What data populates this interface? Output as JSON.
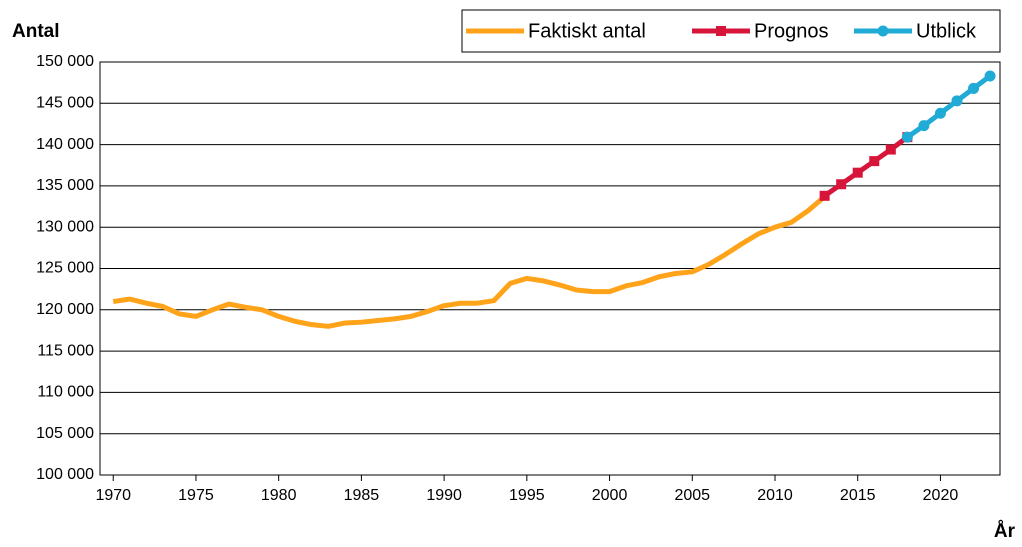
{
  "chart_data": {
    "type": "line",
    "y_label": "Antal",
    "x_label": "År",
    "x": [
      1970,
      1971,
      1972,
      1973,
      1974,
      1975,
      1976,
      1977,
      1978,
      1979,
      1980,
      1981,
      1982,
      1983,
      1984,
      1985,
      1986,
      1987,
      1988,
      1989,
      1990,
      1991,
      1992,
      1993,
      1994,
      1995,
      1996,
      1997,
      1998,
      1999,
      2000,
      2001,
      2002,
      2003,
      2004,
      2005,
      2006,
      2007,
      2008,
      2009,
      2010,
      2011,
      2012,
      2013,
      2014,
      2015,
      2016,
      2017,
      2018,
      2019,
      2020,
      2021,
      2022,
      2023
    ],
    "series": [
      {
        "name": "Faktiskt antal",
        "color": "#ffa31a",
        "marker": "none",
        "values": [
          121000,
          121300,
          120800,
          120400,
          119500,
          119200,
          120000,
          120700,
          120300,
          120000,
          119200,
          118600,
          118200,
          118000,
          118400,
          118500,
          118700,
          118900,
          119200,
          119800,
          120500,
          120800,
          120800,
          121100,
          123200,
          123800,
          123500,
          123000,
          122400,
          122200,
          122200,
          122900,
          123300,
          124000,
          124400,
          124600,
          125500,
          126700,
          128000,
          129200,
          130000,
          130600,
          132000,
          133700,
          null,
          null,
          null,
          null,
          null,
          null,
          null,
          null,
          null,
          null
        ]
      },
      {
        "name": "Prognos",
        "color": "#d7153a",
        "marker": "square",
        "values": [
          null,
          null,
          null,
          null,
          null,
          null,
          null,
          null,
          null,
          null,
          null,
          null,
          null,
          null,
          null,
          null,
          null,
          null,
          null,
          null,
          null,
          null,
          null,
          null,
          null,
          null,
          null,
          null,
          null,
          null,
          null,
          null,
          null,
          null,
          null,
          null,
          null,
          null,
          null,
          null,
          null,
          null,
          null,
          133800,
          135200,
          136600,
          138000,
          139400,
          140900,
          null,
          null,
          null,
          null,
          null
        ]
      },
      {
        "name": "Utblick",
        "color": "#20aad6",
        "marker": "circle",
        "values": [
          null,
          null,
          null,
          null,
          null,
          null,
          null,
          null,
          null,
          null,
          null,
          null,
          null,
          null,
          null,
          null,
          null,
          null,
          null,
          null,
          null,
          null,
          null,
          null,
          null,
          null,
          null,
          null,
          null,
          null,
          null,
          null,
          null,
          null,
          null,
          null,
          null,
          null,
          null,
          null,
          null,
          null,
          null,
          null,
          null,
          null,
          null,
          null,
          140900,
          142300,
          143800,
          145300,
          146800,
          148300
        ]
      }
    ],
    "xlim": [
      1969.2,
      2023.6
    ],
    "xticks": [
      1970,
      1975,
      1980,
      1985,
      1990,
      1995,
      2000,
      2005,
      2010,
      2015,
      2020
    ],
    "ylim": [
      100000,
      150000
    ],
    "yticks": [
      {
        "value": 100000,
        "label": "100 000"
      },
      {
        "value": 105000,
        "label": "105 000"
      },
      {
        "value": 110000,
        "label": "110 000"
      },
      {
        "value": 115000,
        "label": "115 000"
      },
      {
        "value": 120000,
        "label": "120 000"
      },
      {
        "value": 125000,
        "label": "125 000"
      },
      {
        "value": 130000,
        "label": "130 000"
      },
      {
        "value": 135000,
        "label": "135 000"
      },
      {
        "value": 140000,
        "label": "140 000"
      },
      {
        "value": 145000,
        "label": "145 000"
      },
      {
        "value": 150000,
        "label": "150 000"
      }
    ],
    "grid": true,
    "legend": "top-right"
  }
}
